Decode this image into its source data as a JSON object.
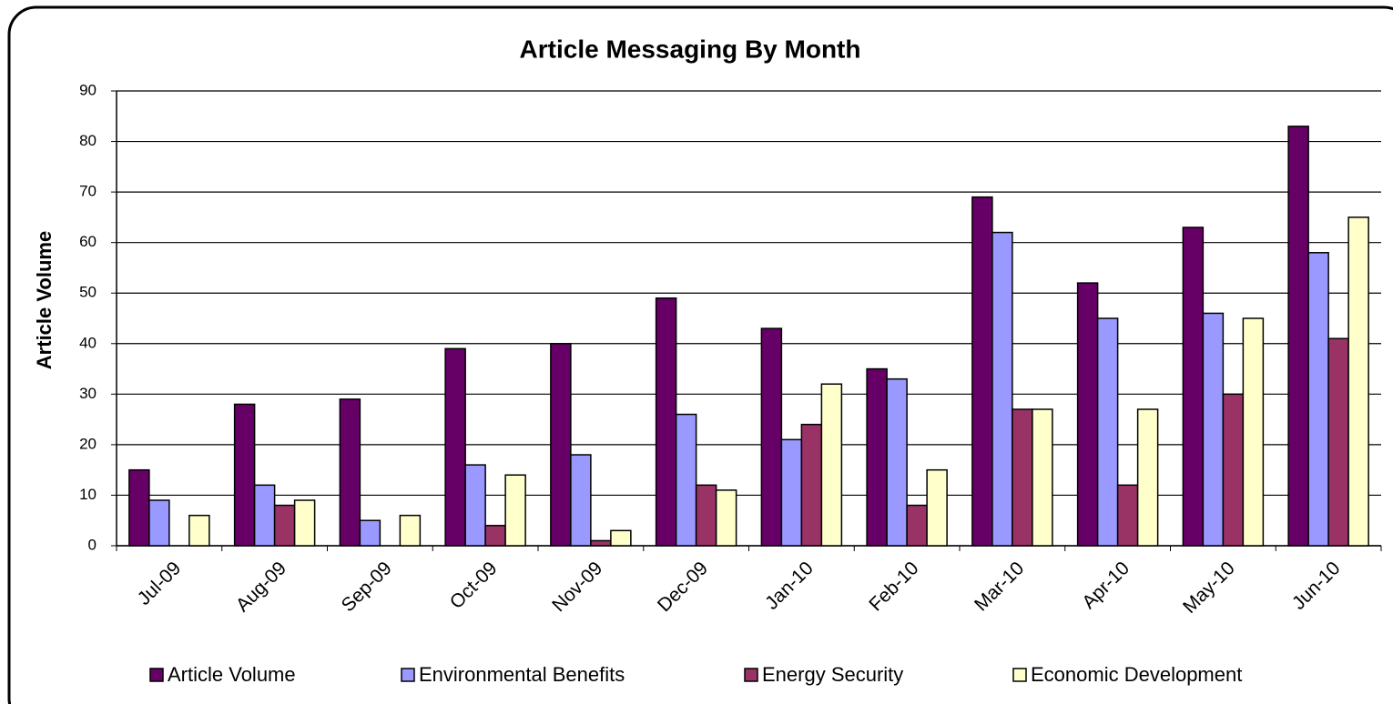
{
  "chart_data": {
    "type": "bar",
    "title": "Article Messaging By Month",
    "y_label": "Article Volume",
    "categories": [
      "Jul-09",
      "Aug-09",
      "Sep-09",
      "Oct-09",
      "Nov-09",
      "Dec-09",
      "Jan-10",
      "Feb-10",
      "Mar-10",
      "Apr-10",
      "May-10",
      "Jun-10"
    ],
    "series": [
      {
        "name": "Article Volume",
        "color": "#660066",
        "values": [
          15,
          28,
          29,
          39,
          40,
          49,
          43,
          35,
          69,
          52,
          63,
          83
        ]
      },
      {
        "name": "Environmental Benefits",
        "color": "#9999ff",
        "values": [
          9,
          12,
          5,
          16,
          18,
          26,
          21,
          33,
          62,
          45,
          46,
          58
        ]
      },
      {
        "name": "Energy Security",
        "color": "#993366",
        "values": [
          0,
          8,
          0,
          4,
          1,
          12,
          24,
          8,
          27,
          12,
          30,
          41
        ]
      },
      {
        "name": "Economic Development",
        "color": "#ffffcc",
        "values": [
          6,
          9,
          6,
          14,
          3,
          11,
          32,
          15,
          27,
          27,
          45,
          65
        ]
      }
    ],
    "ylim": [
      0,
      90
    ],
    "yticks": [
      0,
      10,
      20,
      30,
      40,
      50,
      60,
      70,
      80,
      90
    ],
    "grid": true,
    "legend": "bottom"
  }
}
